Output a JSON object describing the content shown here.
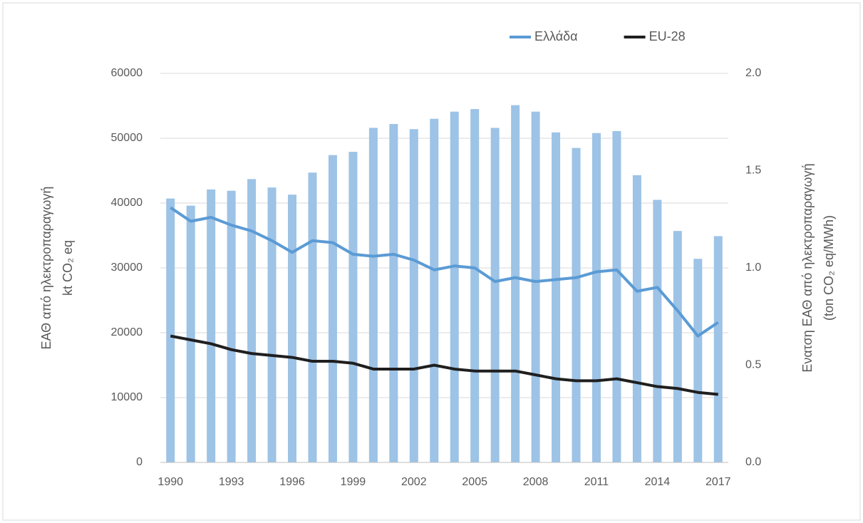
{
  "chart_data": {
    "type": "bar",
    "categories": [
      "1990",
      null,
      null,
      "1993",
      null,
      null,
      "1996",
      null,
      null,
      "1999",
      null,
      null,
      "2002",
      null,
      null,
      "2005",
      null,
      null,
      "2008",
      null,
      null,
      "2011",
      null,
      null,
      "2014",
      null,
      null,
      "2017"
    ],
    "series": [
      {
        "type": "bar",
        "color": "#9dc3e6",
        "values": [
          40700,
          39600,
          42100,
          41900,
          43700,
          42400,
          41300,
          44700,
          47400,
          47900,
          51600,
          52200,
          51400,
          53000,
          54100,
          54500,
          51600,
          55100,
          54100,
          50900,
          48500,
          50800,
          51100,
          44300,
          40500,
          35700,
          31400,
          34900
        ]
      },
      {
        "type": "line",
        "name": "Ελλάδα",
        "color": "#5b9bd5",
        "axis": "y2",
        "values": [
          1.31,
          1.24,
          1.26,
          1.22,
          1.19,
          1.14,
          1.08,
          1.14,
          1.13,
          1.07,
          1.06,
          1.07,
          1.04,
          0.99,
          1.01,
          1.0,
          0.93,
          0.95,
          0.93,
          0.94,
          0.95,
          0.98,
          0.99,
          0.88,
          0.9,
          0.78,
          0.65,
          0.72
        ]
      },
      {
        "type": "line",
        "name": "EU-28",
        "color": "#1f1f1f",
        "axis": "y2",
        "values": [
          0.65,
          0.63,
          0.61,
          0.58,
          0.56,
          0.55,
          0.54,
          0.52,
          0.52,
          0.51,
          0.48,
          0.48,
          0.48,
          0.5,
          0.48,
          0.47,
          0.47,
          0.47,
          0.45,
          0.43,
          0.42,
          0.42,
          0.43,
          0.41,
          0.39,
          0.38,
          0.36,
          0.35
        ]
      }
    ],
    "y_label": [
      "ΕΑΘ από ηλεκτροπαραγωγή",
      "kt CO₂ eq"
    ],
    "y2_label": [
      "Ενατση ΕΑΘ από ηλεκτροπαραγωγή",
      "(ton CO₂ eq/MWh)"
    ],
    "ylim": [
      0,
      60000
    ],
    "yticks": [
      0,
      10000,
      20000,
      30000,
      40000,
      50000,
      60000
    ],
    "y2lim": [
      0,
      2
    ],
    "y2ticks": [
      {
        "value": 0,
        "label": "0.0"
      },
      0.5,
      {
        "value": 1,
        "label": "1.0"
      },
      1.5,
      {
        "value": 2,
        "label": "2.0"
      }
    ],
    "grid": true,
    "legend": "top-right"
  }
}
